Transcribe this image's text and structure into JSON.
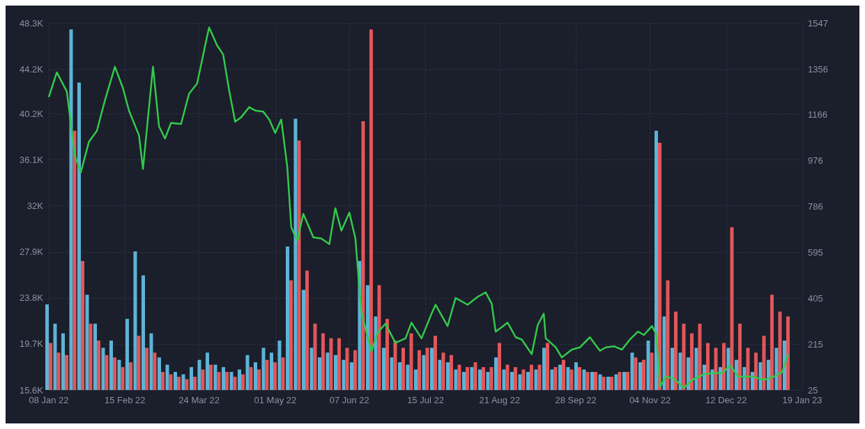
{
  "chart_data": {
    "type": "bar",
    "grid": true,
    "marker": "none",
    "xlim": [
      "2022-01-08",
      "2023-01-19"
    ],
    "xticks": [
      {
        "value": "2022-01-08",
        "label": "08 Jan 22"
      },
      {
        "value": "2022-02-15",
        "label": "15 Feb 22"
      },
      {
        "value": "2022-03-24",
        "label": "24 Mar 22"
      },
      {
        "value": "2022-05-01",
        "label": "01 May 22"
      },
      {
        "value": "2022-06-07",
        "label": "07 Jun 22"
      },
      {
        "value": "2022-07-15",
        "label": "15 Jul 22"
      },
      {
        "value": "2022-08-21",
        "label": "21 Aug 22"
      },
      {
        "value": "2022-09-28",
        "label": "28 Sep 22"
      },
      {
        "value": "2022-11-04",
        "label": "04 Nov 22"
      },
      {
        "value": "2022-12-12",
        "label": "12 Dec 22"
      },
      {
        "value": "2023-01-19",
        "label": "19 Jan 23"
      }
    ],
    "ylim": [
      15600,
      48300
    ],
    "yticks": [
      {
        "value": 15600,
        "label": "15.6K"
      },
      {
        "value": 19700,
        "label": "19.7K"
      },
      {
        "value": 23800,
        "label": "23.8K"
      },
      {
        "value": 27900,
        "label": "27.9K"
      },
      {
        "value": 32000,
        "label": "32K"
      },
      {
        "value": 36100,
        "label": "36.1K"
      },
      {
        "value": 40200,
        "label": "40.2K"
      },
      {
        "value": 44200,
        "label": "44.2K"
      },
      {
        "value": 48300,
        "label": "48.3K"
      }
    ],
    "y2lim": [
      25,
      1547
    ],
    "y2ticks": [
      25,
      215,
      405,
      595,
      786,
      976,
      1166,
      1356,
      1547
    ],
    "series": [
      {
        "axis": "y2",
        "color": "#5db4d6",
        "x": [
          "2022-01-08",
          "2022-01-12",
          "2022-01-16",
          "2022-01-20",
          "2022-01-24",
          "2022-01-28",
          "2022-02-01",
          "2022-02-05",
          "2022-02-09",
          "2022-02-13",
          "2022-02-17",
          "2022-02-21",
          "2022-02-25",
          "2022-03-01",
          "2022-03-05",
          "2022-03-09",
          "2022-03-13",
          "2022-03-17",
          "2022-03-21",
          "2022-03-25",
          "2022-03-29",
          "2022-04-02",
          "2022-04-06",
          "2022-04-10",
          "2022-04-14",
          "2022-04-18",
          "2022-04-22",
          "2022-04-26",
          "2022-04-30",
          "2022-05-04",
          "2022-05-08",
          "2022-05-12",
          "2022-05-16",
          "2022-05-20",
          "2022-05-24",
          "2022-05-28",
          "2022-06-01",
          "2022-06-05",
          "2022-06-09",
          "2022-06-13",
          "2022-06-17",
          "2022-06-21",
          "2022-06-25",
          "2022-06-29",
          "2022-07-03",
          "2022-07-07",
          "2022-07-11",
          "2022-07-15",
          "2022-07-19",
          "2022-07-23",
          "2022-07-27",
          "2022-07-31",
          "2022-08-04",
          "2022-08-08",
          "2022-08-12",
          "2022-08-16",
          "2022-08-20",
          "2022-08-24",
          "2022-08-28",
          "2022-09-01",
          "2022-09-05",
          "2022-09-09",
          "2022-09-13",
          "2022-09-17",
          "2022-09-21",
          "2022-09-25",
          "2022-09-29",
          "2022-10-03",
          "2022-10-07",
          "2022-10-11",
          "2022-10-15",
          "2022-10-19",
          "2022-10-23",
          "2022-10-27",
          "2022-10-31",
          "2022-11-04",
          "2022-11-08",
          "2022-11-12",
          "2022-11-16",
          "2022-11-20",
          "2022-11-24",
          "2022-11-28",
          "2022-12-02",
          "2022-12-06",
          "2022-12-10",
          "2022-12-14",
          "2022-12-18",
          "2022-12-22",
          "2022-12-26",
          "2022-12-30",
          "2023-01-03",
          "2023-01-07",
          "2023-01-11"
        ],
        "values": [
          380,
          300,
          260,
          1520,
          1300,
          420,
          300,
          200,
          230,
          150,
          320,
          600,
          500,
          260,
          160,
          130,
          100,
          90,
          120,
          150,
          180,
          130,
          120,
          100,
          110,
          170,
          140,
          200,
          180,
          230,
          620,
          1150,
          440,
          200,
          160,
          180,
          170,
          150,
          140,
          560,
          460,
          330,
          200,
          160,
          140,
          130,
          110,
          170,
          200,
          150,
          140,
          110,
          100,
          120,
          110,
          100,
          160,
          110,
          100,
          90,
          100,
          110,
          200,
          110,
          130,
          120,
          140,
          110,
          100,
          90,
          80,
          90,
          100,
          180,
          140,
          230,
          1100,
          330,
          200,
          180,
          160,
          200,
          130,
          110,
          120,
          200,
          150,
          120,
          100,
          140,
          150,
          200,
          230
        ]
      },
      {
        "axis": "y2",
        "color": "#e0575b",
        "x": [
          "2022-01-08",
          "2022-01-12",
          "2022-01-16",
          "2022-01-20",
          "2022-01-24",
          "2022-01-28",
          "2022-02-01",
          "2022-02-05",
          "2022-02-09",
          "2022-02-13",
          "2022-02-17",
          "2022-02-21",
          "2022-02-25",
          "2022-03-01",
          "2022-03-05",
          "2022-03-09",
          "2022-03-13",
          "2022-03-17",
          "2022-03-21",
          "2022-03-25",
          "2022-03-29",
          "2022-04-02",
          "2022-04-06",
          "2022-04-10",
          "2022-04-14",
          "2022-04-18",
          "2022-04-22",
          "2022-04-26",
          "2022-04-30",
          "2022-05-04",
          "2022-05-08",
          "2022-05-12",
          "2022-05-16",
          "2022-05-20",
          "2022-05-24",
          "2022-05-28",
          "2022-06-01",
          "2022-06-05",
          "2022-06-09",
          "2022-06-13",
          "2022-06-17",
          "2022-06-21",
          "2022-06-25",
          "2022-06-29",
          "2022-07-03",
          "2022-07-07",
          "2022-07-11",
          "2022-07-15",
          "2022-07-19",
          "2022-07-23",
          "2022-07-27",
          "2022-07-31",
          "2022-08-04",
          "2022-08-08",
          "2022-08-12",
          "2022-08-16",
          "2022-08-20",
          "2022-08-24",
          "2022-08-28",
          "2022-09-01",
          "2022-09-05",
          "2022-09-09",
          "2022-09-13",
          "2022-09-17",
          "2022-09-21",
          "2022-09-25",
          "2022-09-29",
          "2022-10-03",
          "2022-10-07",
          "2022-10-11",
          "2022-10-15",
          "2022-10-19",
          "2022-10-23",
          "2022-10-27",
          "2022-10-31",
          "2022-11-04",
          "2022-11-08",
          "2022-11-12",
          "2022-11-16",
          "2022-11-20",
          "2022-11-24",
          "2022-11-28",
          "2022-12-02",
          "2022-12-06",
          "2022-12-10",
          "2022-12-14",
          "2022-12-18",
          "2022-12-22",
          "2022-12-26",
          "2022-12-30",
          "2023-01-03",
          "2023-01-07",
          "2023-01-11"
        ],
        "values": [
          220,
          180,
          170,
          1100,
          560,
          300,
          230,
          170,
          160,
          120,
          140,
          250,
          200,
          180,
          100,
          90,
          80,
          70,
          80,
          110,
          130,
          100,
          100,
          80,
          90,
          120,
          110,
          150,
          140,
          160,
          480,
          1060,
          520,
          300,
          260,
          240,
          240,
          200,
          190,
          1140,
          1520,
          460,
          320,
          230,
          200,
          260,
          190,
          200,
          250,
          180,
          170,
          130,
          120,
          140,
          120,
          120,
          220,
          130,
          120,
          110,
          130,
          130,
          220,
          120,
          150,
          110,
          120,
          100,
          100,
          80,
          80,
          100,
          100,
          160,
          150,
          180,
          1050,
          480,
          350,
          300,
          260,
          300,
          220,
          200,
          220,
          700,
          300,
          200,
          180,
          250,
          420,
          350,
          330
        ]
      },
      {
        "type": "line",
        "axis": "y",
        "color": "#33c94c",
        "x": [
          "2022-01-08",
          "2022-01-12",
          "2022-01-17",
          "2022-01-21",
          "2022-01-24",
          "2022-01-28",
          "2022-02-01",
          "2022-02-05",
          "2022-02-10",
          "2022-02-14",
          "2022-02-17",
          "2022-02-22",
          "2022-02-24",
          "2022-03-01",
          "2022-03-04",
          "2022-03-07",
          "2022-03-10",
          "2022-03-15",
          "2022-03-19",
          "2022-03-23",
          "2022-03-28",
          "2022-03-29",
          "2022-04-02",
          "2022-04-05",
          "2022-04-08",
          "2022-04-11",
          "2022-04-14",
          "2022-04-18",
          "2022-04-21",
          "2022-04-25",
          "2022-04-28",
          "2022-05-01",
          "2022-05-04",
          "2022-05-07",
          "2022-05-09",
          "2022-05-12",
          "2022-05-15",
          "2022-05-20",
          "2022-05-24",
          "2022-05-28",
          "2022-05-31",
          "2022-06-03",
          "2022-06-07",
          "2022-06-10",
          "2022-06-13",
          "2022-06-18",
          "2022-06-21",
          "2022-06-25",
          "2022-06-30",
          "2022-07-05",
          "2022-07-08",
          "2022-07-13",
          "2022-07-18",
          "2022-07-20",
          "2022-07-26",
          "2022-07-30",
          "2022-08-05",
          "2022-08-10",
          "2022-08-14",
          "2022-08-17",
          "2022-08-19",
          "2022-08-25",
          "2022-08-29",
          "2022-09-01",
          "2022-09-06",
          "2022-09-09",
          "2022-09-12",
          "2022-09-13",
          "2022-09-18",
          "2022-09-21",
          "2022-09-26",
          "2022-09-30",
          "2022-10-05",
          "2022-10-10",
          "2022-10-13",
          "2022-10-17",
          "2022-10-21",
          "2022-10-25",
          "2022-10-29",
          "2022-11-01",
          "2022-11-05",
          "2022-11-07",
          "2022-11-08",
          "2022-11-09",
          "2022-11-12",
          "2022-11-16",
          "2022-11-21",
          "2022-11-25",
          "2022-12-01",
          "2022-12-05",
          "2022-12-10",
          "2022-12-14",
          "2022-12-18",
          "2022-12-25",
          "2022-12-31",
          "2023-01-05",
          "2023-01-09",
          "2023-01-12"
        ],
        "values": [
          41700,
          43900,
          42200,
          36500,
          35000,
          37700,
          38700,
          41400,
          44400,
          42500,
          40500,
          38300,
          35300,
          44400,
          39100,
          38000,
          39400,
          39300,
          42000,
          42900,
          47100,
          47900,
          46300,
          45500,
          42300,
          39500,
          39900,
          40800,
          40500,
          40400,
          39700,
          38500,
          39700,
          35500,
          30100,
          28900,
          31300,
          29200,
          29100,
          28600,
          31800,
          29800,
          31400,
          29100,
          22500,
          19000,
          20700,
          21500,
          19800,
          20200,
          21600,
          20200,
          22400,
          23200,
          21300,
          23800,
          23200,
          23900,
          24300,
          23300,
          20800,
          21600,
          20300,
          20100,
          18800,
          21400,
          22400,
          20200,
          19400,
          18500,
          19200,
          19400,
          20300,
          19100,
          19400,
          19500,
          19200,
          20100,
          20800,
          20500,
          21300,
          20600,
          18500,
          15900,
          16800,
          16600,
          15800,
          16500,
          17000,
          17100,
          17100,
          17800,
          16800,
          16800,
          16500,
          16800,
          17200,
          18800
        ]
      }
    ]
  }
}
